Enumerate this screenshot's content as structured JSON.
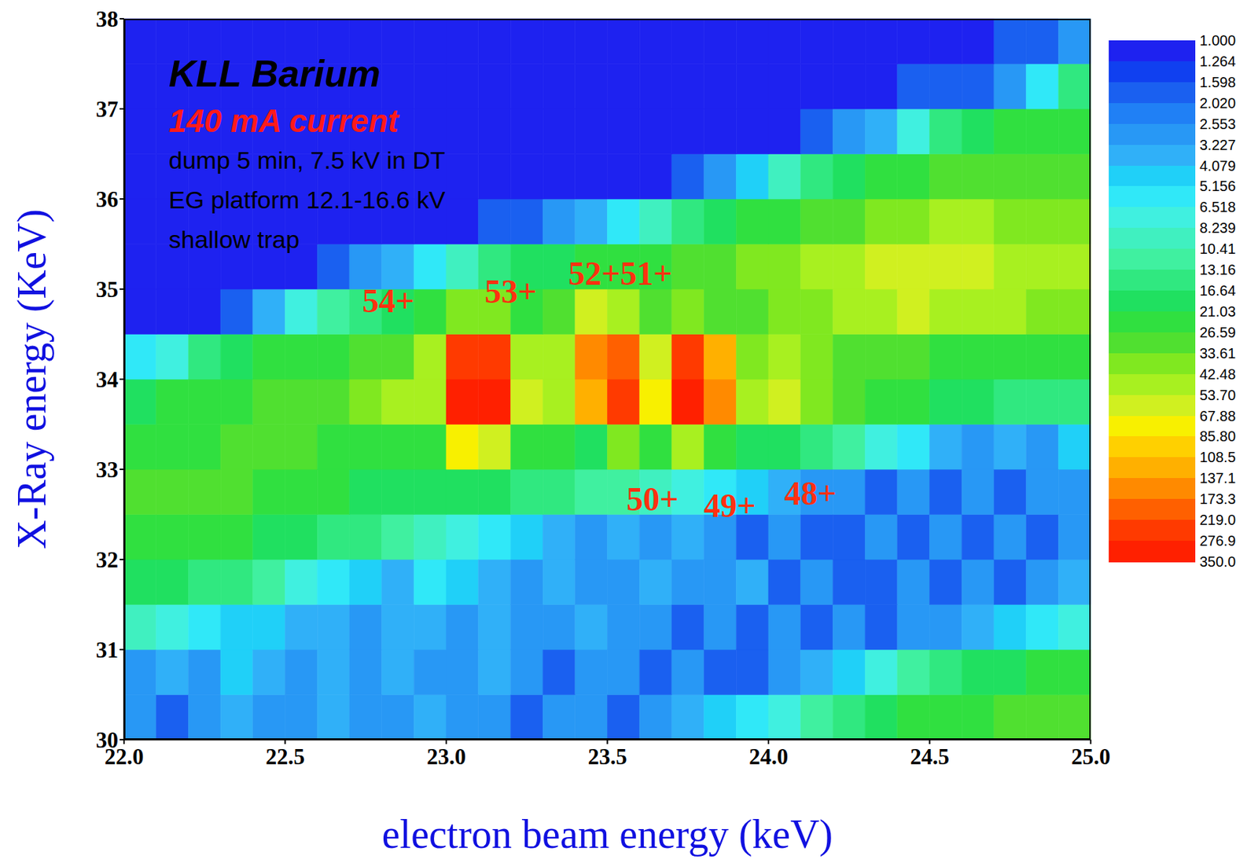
{
  "chart_data": {
    "type": "heatmap",
    "title": "KLL Barium",
    "subtitle": "140 mA current",
    "notes": [
      "dump 5 min, 7.5 kV in DT",
      "EG platform 12.1-16.6 kV",
      "shallow trap"
    ],
    "xlabel": "electron beam energy (keV)",
    "ylabel": "X-Ray energy (KeV)",
    "annotations": [
      {
        "text": "54+",
        "x": 22.82,
        "y": 34.87
      },
      {
        "text": "53+",
        "x": 23.2,
        "y": 34.98
      },
      {
        "text": "52+51+",
        "x": 23.54,
        "y": 35.18
      },
      {
        "text": "50+",
        "x": 23.64,
        "y": 32.67
      },
      {
        "text": "49+",
        "x": 23.88,
        "y": 32.6
      },
      {
        "text": "48+",
        "x": 24.13,
        "y": 32.74
      }
    ],
    "xlim": [
      22,
      25
    ],
    "xticks": [
      {
        "value": 22,
        "label": "22.0"
      },
      {
        "value": 22.5,
        "label": "22.5"
      },
      {
        "value": 23,
        "label": "23.0"
      },
      {
        "value": 23.5,
        "label": "23.5"
      },
      {
        "value": 24,
        "label": "24.0"
      },
      {
        "value": 24.5,
        "label": "24.5"
      },
      {
        "value": 25,
        "label": "25.0"
      }
    ],
    "ylim": [
      30,
      38
    ],
    "yticks": [
      30,
      31,
      32,
      33,
      34,
      35,
      36,
      37,
      38
    ],
    "grid": false,
    "x_bins": [
      22.0,
      22.1,
      22.2,
      22.3,
      22.4,
      22.5,
      22.6,
      22.7,
      22.8,
      22.9,
      23.0,
      23.1,
      23.2,
      23.3,
      23.4,
      23.5,
      23.6,
      23.7,
      23.8,
      23.9,
      24.0,
      24.1,
      24.2,
      24.3,
      24.4,
      24.5,
      24.6,
      24.7,
      24.8,
      24.9,
      25.0
    ],
    "y_bins": [
      30.0,
      30.5,
      31.0,
      31.5,
      32.0,
      32.5,
      33.0,
      33.5,
      34.0,
      34.5,
      35.0,
      35.5,
      36.0,
      36.5,
      37.0,
      37.5,
      38.0
    ],
    "z": [
      [
        3,
        2,
        3,
        4,
        3,
        3,
        4,
        3,
        3,
        4,
        3,
        3,
        2,
        3,
        3,
        2,
        3,
        4,
        5,
        6,
        8,
        12,
        16,
        20,
        22,
        24,
        26,
        28,
        30,
        30
      ],
      [
        3,
        4,
        3,
        5,
        4,
        3,
        4,
        3,
        4,
        3,
        3,
        4,
        3,
        2,
        3,
        3,
        2,
        3,
        2,
        2,
        3,
        4,
        5,
        8,
        12,
        16,
        18,
        20,
        22,
        22
      ],
      [
        10,
        8,
        6,
        5,
        5,
        4,
        4,
        3,
        4,
        4,
        3,
        4,
        3,
        3,
        4,
        3,
        3,
        2,
        3,
        2,
        3,
        2,
        3,
        2,
        3,
        3,
        4,
        5,
        6,
        8
      ],
      [
        20,
        18,
        16,
        14,
        12,
        8,
        6,
        5,
        4,
        6,
        5,
        4,
        3,
        4,
        3,
        3,
        4,
        3,
        3,
        4,
        2,
        3,
        2,
        2,
        3,
        2,
        3,
        2,
        3,
        4
      ],
      [
        26,
        26,
        24,
        22,
        20,
        18,
        16,
        14,
        12,
        10,
        8,
        6,
        5,
        4,
        3,
        4,
        3,
        4,
        3,
        2,
        3,
        2,
        2,
        3,
        2,
        3,
        2,
        3,
        2,
        3
      ],
      [
        28,
        30,
        30,
        28,
        26,
        24,
        22,
        20,
        18,
        18,
        20,
        18,
        16,
        14,
        12,
        12,
        10,
        8,
        6,
        5,
        4,
        3,
        3,
        2,
        3,
        2,
        3,
        2,
        3,
        3
      ],
      [
        22,
        24,
        26,
        28,
        30,
        28,
        26,
        24,
        24,
        26,
        80,
        60,
        24,
        22,
        20,
        40,
        22,
        50,
        24,
        20,
        18,
        16,
        12,
        8,
        6,
        4,
        3,
        4,
        3,
        5
      ],
      [
        20,
        22,
        24,
        26,
        28,
        30,
        32,
        40,
        45,
        50,
        280,
        300,
        55,
        45,
        110,
        240,
        70,
        320,
        160,
        45,
        60,
        40,
        30,
        26,
        22,
        20,
        18,
        16,
        15,
        14
      ],
      [
        6,
        8,
        14,
        18,
        22,
        24,
        26,
        30,
        33,
        45,
        250,
        230,
        50,
        45,
        170,
        200,
        60,
        260,
        130,
        40,
        45,
        35,
        32,
        30,
        28,
        26,
        26,
        24,
        24,
        22
      ],
      [
        1,
        1,
        1,
        2,
        4,
        8,
        12,
        16,
        20,
        24,
        40,
        35,
        26,
        28,
        60,
        45,
        30,
        40,
        32,
        30,
        34,
        38,
        45,
        50,
        55,
        52,
        50,
        45,
        42,
        40
      ],
      [
        1,
        1,
        1,
        1,
        1,
        1,
        2,
        3,
        4,
        6,
        10,
        14,
        18,
        20,
        22,
        24,
        26,
        28,
        30,
        34,
        40,
        45,
        50,
        55,
        60,
        58,
        55,
        52,
        50,
        48
      ],
      [
        1,
        1,
        1,
        1,
        1,
        1,
        1,
        1,
        1,
        1,
        1,
        2,
        2,
        3,
        4,
        6,
        10,
        14,
        18,
        22,
        26,
        30,
        32,
        36,
        40,
        45,
        45,
        42,
        40,
        40
      ],
      [
        1,
        1,
        1,
        1,
        1,
        1,
        1,
        1,
        1,
        1,
        1,
        1,
        1,
        1,
        1,
        1,
        1,
        2,
        3,
        5,
        10,
        16,
        20,
        24,
        26,
        28,
        28,
        30,
        30,
        28
      ],
      [
        1,
        1,
        1,
        1,
        1,
        1,
        1,
        1,
        1,
        1,
        1,
        1,
        1,
        1,
        1,
        1,
        1,
        1,
        1,
        1,
        1,
        2,
        3,
        4,
        8,
        14,
        20,
        22,
        24,
        24
      ],
      [
        1,
        1,
        1,
        1,
        1,
        1,
        1,
        1,
        1,
        1,
        1,
        1,
        1,
        1,
        1,
        1,
        1,
        1,
        1,
        1,
        1,
        1,
        1,
        1,
        2,
        2,
        2,
        3,
        6,
        14
      ],
      [
        1,
        1,
        1,
        1,
        1,
        1,
        1,
        1,
        1,
        1,
        1,
        1,
        1,
        1,
        1,
        1,
        1,
        1,
        1,
        1,
        1,
        1,
        1,
        1,
        1,
        1,
        1,
        2,
        2,
        3
      ]
    ],
    "colorbar": {
      "range": [
        1,
        350
      ],
      "log": true,
      "ticks": [
        {
          "value": 1,
          "label": "1.000"
        },
        1.264,
        1.598,
        {
          "value": 2.02,
          "label": "2.020"
        },
        2.553,
        3.227,
        4.079,
        5.156,
        6.518,
        8.239,
        10.41,
        13.16,
        16.64,
        21.03,
        26.59,
        33.61,
        42.48,
        {
          "value": 53.7,
          "label": "53.70"
        },
        67.88,
        {
          "value": 85.8,
          "label": "85.80"
        },
        108.5,
        137.1,
        173.3,
        {
          "value": 219,
          "label": "219.0"
        },
        276.9,
        {
          "value": 350,
          "label": "350.0"
        }
      ],
      "colors": [
        "#1e22f0",
        "#1040f0",
        "#1a60f0",
        "#2080f5",
        "#2898f5",
        "#30b0f8",
        "#20d0f8",
        "#30e8f8",
        "#40f0e0",
        "#40f0c0",
        "#40f0a0",
        "#30e880",
        "#20e060",
        "#30e040",
        "#50e030",
        "#80e820",
        "#a8f020",
        "#d0f020",
        "#f8f000",
        "#ffd000",
        "#ffb000",
        "#ff8a00",
        "#ff6000",
        "#ff3a00",
        "#ff2000"
      ]
    }
  }
}
